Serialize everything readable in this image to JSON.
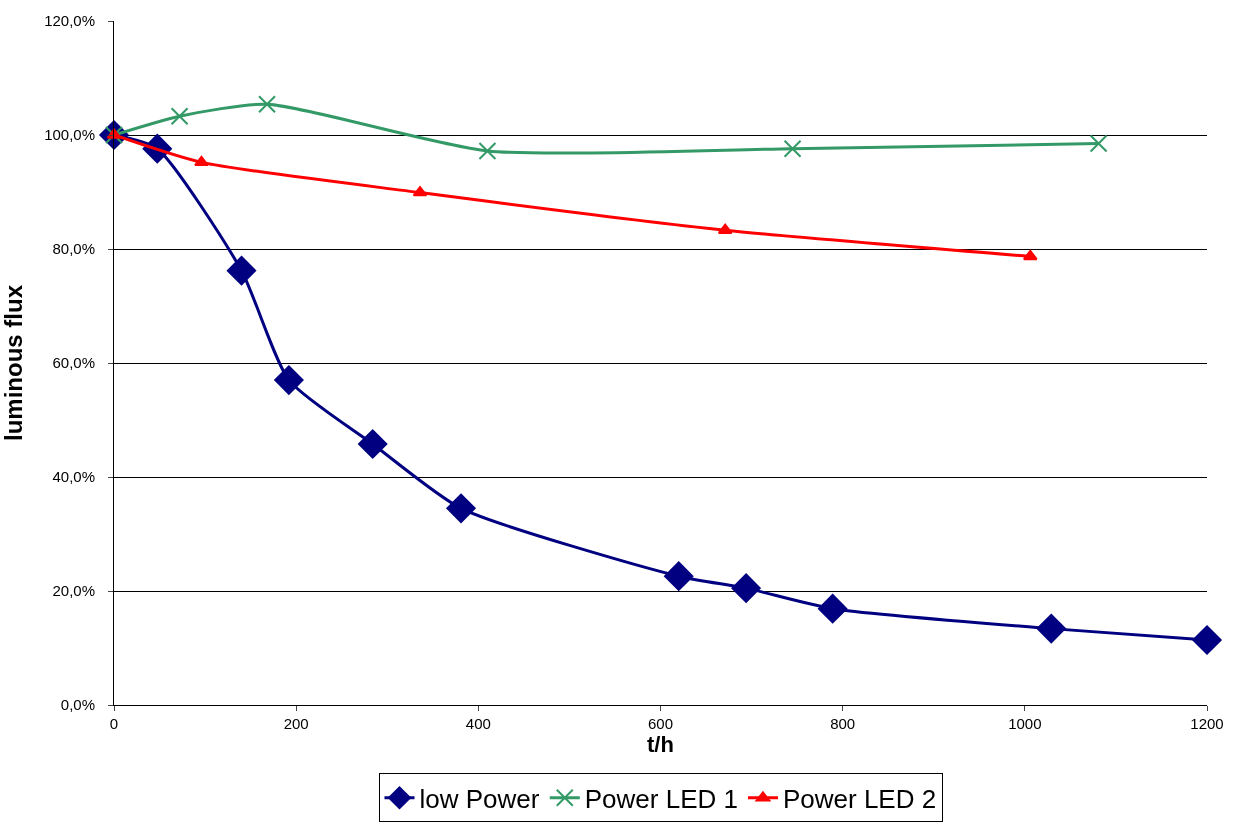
{
  "chart_data": {
    "type": "line",
    "xlabel": "t/h",
    "ylabel": "luminous flux",
    "series": [
      {
        "name": "low Power",
        "color": "#000080",
        "marker": "diamond",
        "x": [
          0,
          47.5,
          140,
          192,
          284,
          381,
          620,
          694,
          789,
          1029,
          1200
        ],
        "values": [
          100,
          97.6,
          76.2,
          57.0,
          45.8,
          34.5,
          22.6,
          20.5,
          16.9,
          13.4,
          11.4
        ]
      },
      {
        "name": "Power LED 1",
        "color": "#339966",
        "marker": "cross",
        "x": [
          0,
          72,
          168,
          410,
          745,
          1081
        ],
        "values": [
          100,
          103.3,
          105.4,
          97.2,
          97.6,
          98.5
        ]
      },
      {
        "name": "Power LED 2",
        "color": "#ff0000",
        "marker": "triangle",
        "x": [
          0,
          96,
          336,
          671,
          1006
        ],
        "values": [
          100,
          95.2,
          89.9,
          83.3,
          78.7
        ]
      }
    ],
    "xlim": [
      0,
      1200
    ],
    "xticks": [
      0,
      200,
      400,
      600,
      800,
      1000,
      1200
    ],
    "ylim": [
      0,
      120
    ],
    "yticks": [
      {
        "value": 0,
        "label": "0,0%"
      },
      {
        "value": 20,
        "label": "20,0%"
      },
      {
        "value": 40,
        "label": "40,0%"
      },
      {
        "value": 60,
        "label": "60,0%"
      },
      {
        "value": 80,
        "label": "80,0%"
      },
      {
        "value": 100,
        "label": "100,0%"
      },
      {
        "value": 120,
        "label": "120,0%"
      }
    ],
    "grid": "y",
    "legend": "bottom",
    "line_style": "solid"
  }
}
